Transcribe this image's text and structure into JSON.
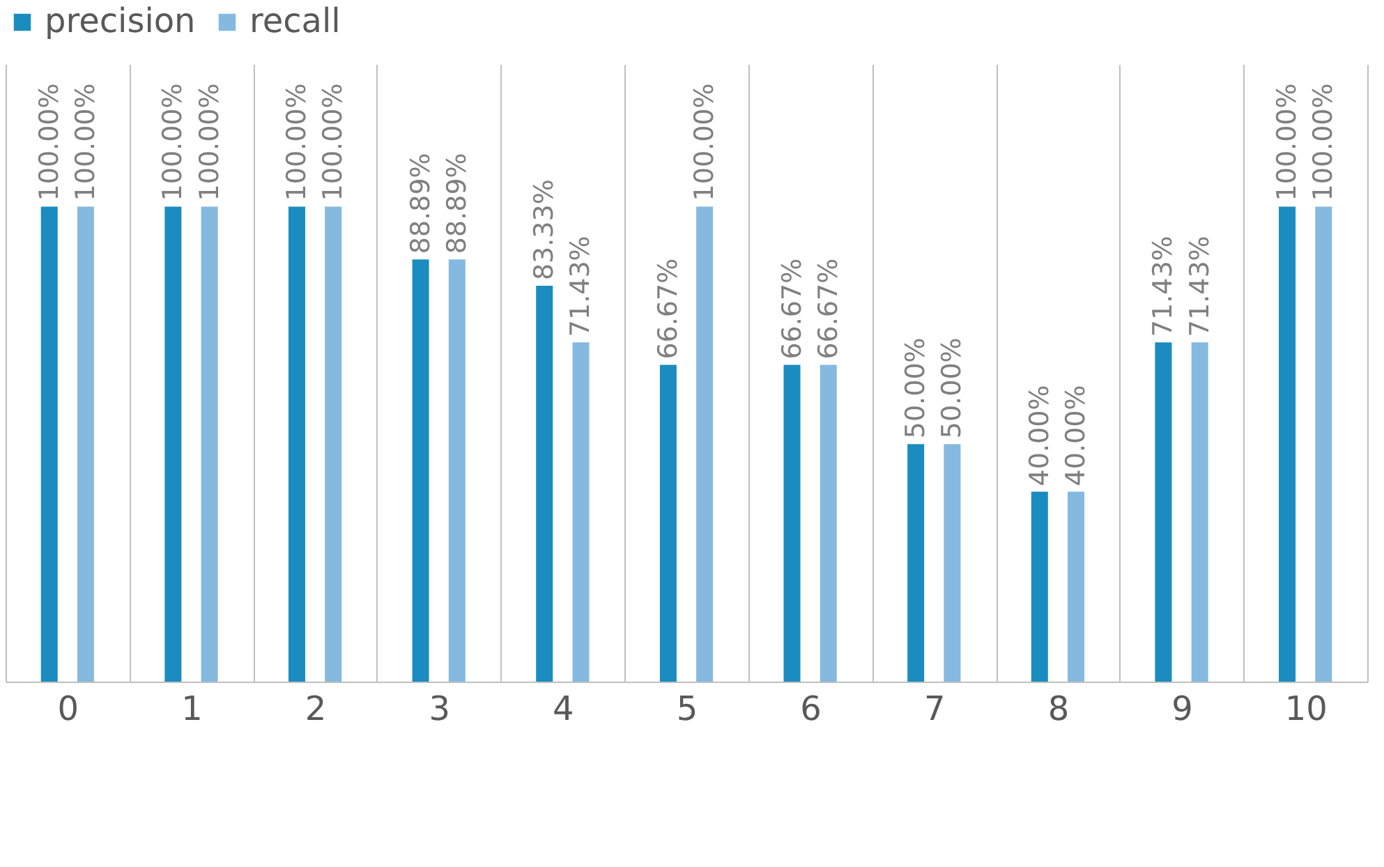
{
  "chart_data": {
    "type": "bar",
    "categories": [
      "0",
      "1",
      "2",
      "3",
      "4",
      "5",
      "6",
      "7",
      "8",
      "9",
      "10"
    ],
    "series": [
      {
        "name": "precision",
        "color": "#1a8cbf",
        "values": [
          100,
          100,
          100,
          88.89,
          83.33,
          66.67,
          66.67,
          50,
          40,
          71.43,
          100
        ],
        "value_labels": [
          "100.00%",
          "100.00%",
          "100.00%",
          "88.89%",
          "83.33%",
          "66.67%",
          "66.67%",
          "50.00%",
          "40.00%",
          "71.43%",
          "100.00%"
        ]
      },
      {
        "name": "recall",
        "color": "#85b9df",
        "values": [
          100,
          100,
          100,
          88.89,
          71.43,
          100,
          66.67,
          50,
          40,
          71.43,
          100
        ],
        "value_labels": [
          "100.00%",
          "100.00%",
          "100.00%",
          "88.89%",
          "71.43%",
          "100.00%",
          "66.67%",
          "50.00%",
          "40.00%",
          "71.43%",
          "100.00%"
        ]
      }
    ],
    "grid": "x",
    "legend": "top"
  }
}
